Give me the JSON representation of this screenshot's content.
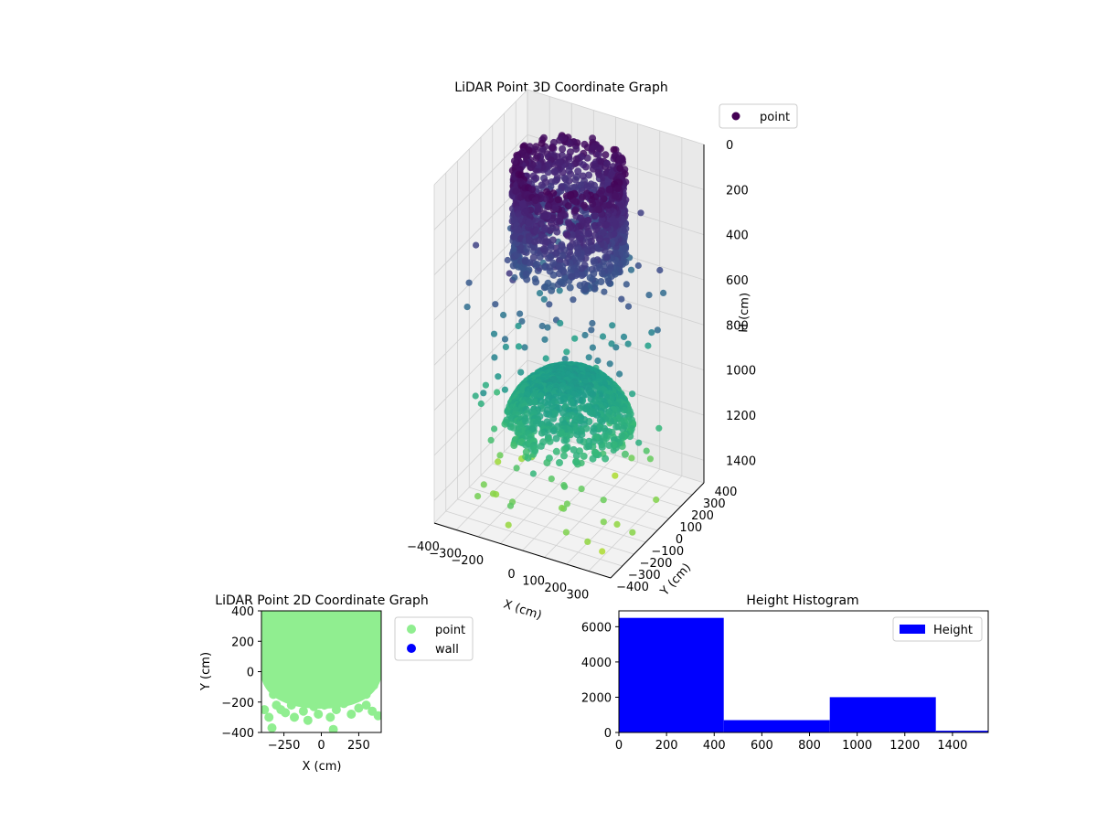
{
  "colors": {
    "hist": "#0000ff",
    "scatter_point": "#90ee90",
    "scatter_wall": "#0000ff",
    "legend3d_marker": "#440154"
  },
  "chart_data": [
    {
      "id": "lidar3d",
      "type": "scatter",
      "title": "LiDAR Point 3D Coordinate Graph",
      "xlabel": "X (cm)",
      "ylabel": "Y (cm)",
      "zlabel": "H (cm)",
      "xticks": [
        "−400",
        "−300",
        "−200",
        "0",
        "100",
        "200",
        "300"
      ],
      "yticks": [
        "−400",
        "−300",
        "−200",
        "−100",
        "0",
        "100",
        "200",
        "300",
        "400"
      ],
      "zticks": [
        "0",
        "200",
        "400",
        "600",
        "800",
        "1000",
        "1200",
        "1400"
      ],
      "xlim": [
        -400,
        400
      ],
      "ylim": [
        -400,
        400
      ],
      "zlim": [
        0,
        1500
      ],
      "zaxis_inverted": true,
      "colormap": "viridis",
      "legend": {
        "position": "top-right",
        "entries": [
          "point"
        ]
      },
      "series": [
        {
          "name": "point",
          "clusters": [
            {
              "shape": "cylinder",
              "x": 0,
              "y": 0,
              "radius": 220,
              "h_min": 0,
              "h_max": 430
            },
            {
              "shape": "dome",
              "x": 0,
              "y": 0,
              "radius": 260,
              "h_min": 930,
              "h_max": 1200
            },
            {
              "shape": "scatter",
              "x_range": [
                -400,
                400
              ],
              "y_range": [
                -400,
                400
              ],
              "h_range": [
                250,
                1500
              ]
            }
          ]
        }
      ]
    },
    {
      "id": "lidar2d",
      "type": "scatter",
      "title": "LiDAR Point 2D Coordinate Graph",
      "xlabel": "X (cm)",
      "ylabel": "Y (cm)",
      "xticks": [
        "−250",
        "0",
        "250"
      ],
      "yticks": [
        "−400",
        "−200",
        "0",
        "200",
        "400"
      ],
      "xlim": [
        -400,
        400
      ],
      "ylim": [
        -400,
        400
      ],
      "legend": {
        "position": "right",
        "entries": [
          "point",
          "wall"
        ]
      },
      "series": [
        {
          "name": "point",
          "points": [
            [
              -380,
              -250
            ],
            [
              -350,
              -300
            ],
            [
              -330,
              -370
            ],
            [
              -300,
              -220
            ],
            [
              -270,
              -250
            ],
            [
              -240,
              -270
            ],
            [
              -200,
              -220
            ],
            [
              -180,
              -300
            ],
            [
              -150,
              -200
            ],
            [
              -120,
              -260
            ],
            [
              -90,
              -320
            ],
            [
              -50,
              -230
            ],
            [
              -20,
              -280
            ],
            [
              20,
              -220
            ],
            [
              60,
              -300
            ],
            [
              100,
              -250
            ],
            [
              150,
              -210
            ],
            [
              200,
              -280
            ],
            [
              250,
              -240
            ],
            [
              300,
              -220
            ],
            [
              340,
              -260
            ],
            [
              380,
              -290
            ],
            [
              80,
              -380
            ],
            [
              -320,
              -150
            ],
            [
              -250,
              -120
            ],
            [
              -200,
              -140
            ],
            [
              -150,
              -110
            ],
            [
              -100,
              -170
            ],
            [
              -60,
              -130
            ],
            [
              0,
              -180
            ],
            [
              50,
              -150
            ],
            [
              100,
              -120
            ],
            [
              150,
              -160
            ],
            [
              200,
              -130
            ],
            [
              250,
              -110
            ],
            [
              300,
              -150
            ],
            [
              350,
              -90
            ],
            [
              -330,
              -60
            ],
            [
              330,
              -60
            ],
            [
              380,
              0
            ],
            [
              -380,
              20
            ],
            [
              390,
              100
            ],
            [
              -390,
              120
            ]
          ]
        },
        {
          "name": "wall",
          "points": []
        }
      ]
    },
    {
      "id": "height_hist",
      "type": "bar",
      "title": "Height Histogram",
      "xlabel": "",
      "ylabel": "",
      "xticks": [
        "0",
        "200",
        "400",
        "600",
        "800",
        "1000",
        "1200",
        "1400"
      ],
      "yticks": [
        "0",
        "2000",
        "4000",
        "6000"
      ],
      "xlim": [
        0,
        1550
      ],
      "ylim": [
        0,
        6900
      ],
      "legend": {
        "position": "top-right",
        "entries": [
          "Height"
        ]
      },
      "bins": [
        [
          0,
          440
        ],
        [
          440,
          885
        ],
        [
          885,
          1330
        ],
        [
          1330,
          1550
        ]
      ],
      "series": [
        {
          "name": "Height",
          "values": [
            6500,
            700,
            2000,
            100
          ]
        }
      ]
    }
  ]
}
